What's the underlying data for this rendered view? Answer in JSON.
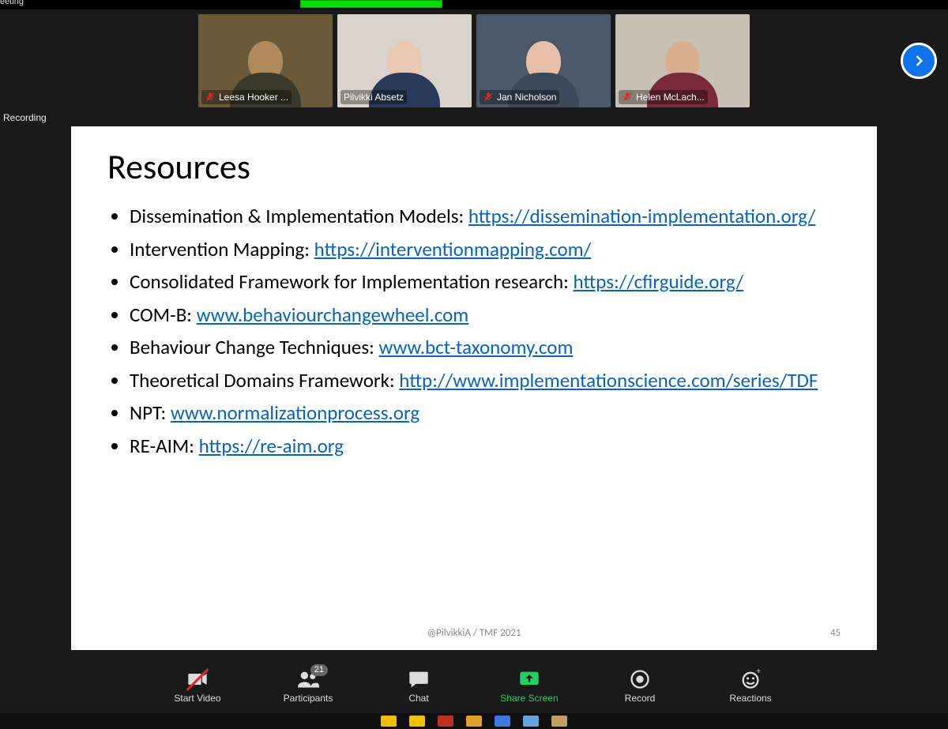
{
  "topbar": {
    "meeting_label": "eeting",
    "connecting": ""
  },
  "recording_label": "Recording",
  "participants": [
    {
      "name": "Leesa Hooker ...",
      "muted": true,
      "active": false,
      "bg": "#6a5a3a",
      "head": "#b08a5a",
      "body": "#3a3a2a"
    },
    {
      "name": "Pilvikki Absetz",
      "muted": false,
      "active": true,
      "bg": "#d8d4cc",
      "head": "#e8c8b0",
      "body": "#2a3a5a"
    },
    {
      "name": "Jan Nicholson",
      "muted": true,
      "active": false,
      "bg": "#4a5a6a",
      "head": "#e8c0a8",
      "body": "#3a4a5a"
    },
    {
      "name": "Helen McLach...",
      "muted": true,
      "active": false,
      "bg": "#c8c0b4",
      "head": "#d8b090",
      "body": "#7a2a3a"
    }
  ],
  "slide": {
    "title": "Resources",
    "items": [
      {
        "label": "Dissemination & Implementation Models: ",
        "link": "https://dissemination-implementation.org/"
      },
      {
        "label": "Intervention Mapping: ",
        "link": "https://interventionmapping.com/"
      },
      {
        "label": "Consolidated Framework for Implementation research: ",
        "link": "https://cfirguide.org/"
      },
      {
        "label": "COM-B: ",
        "link": "www.behaviourchangewheel.com"
      },
      {
        "label": "Behaviour Change Techniques: ",
        "link": "www.bct-taxonomy.com"
      },
      {
        "label": "Theoretical Domains Framework: ",
        "link": "http://www.implementationscience.com/series/TDF"
      },
      {
        "label": "NPT: ",
        "link": "www.normalizationprocess.org"
      },
      {
        "label": "RE-AIM: ",
        "link": "https://re-aim.org"
      }
    ],
    "footer": "@PilvikkiA  / TMF 2021",
    "page": "45",
    "link_color": "#0563c1",
    "text_color": "#000000",
    "bg": "#ffffff"
  },
  "toolbar": {
    "start_video": "Start Video",
    "participants": "Participants",
    "participants_count": "21",
    "chat": "Chat",
    "share": "Share Screen",
    "record": "Record",
    "reactions": "Reactions",
    "share_color": "#23d160"
  },
  "taskbar_apps": [
    "#f0c000",
    "#f0c000",
    "#c03020",
    "#e0a020",
    "#3a7ae0",
    "#6aa0e0",
    "#c0a060"
  ]
}
